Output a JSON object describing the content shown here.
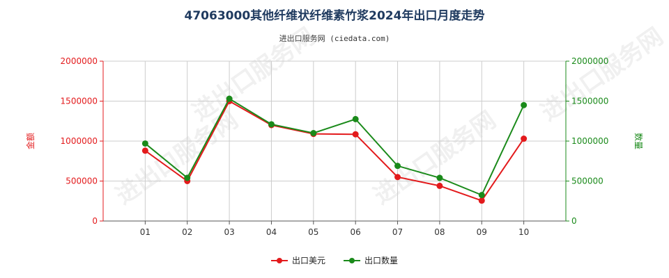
{
  "title": "47063000其他纤维状纤维素竹浆2024年出口月度走势",
  "subtitle": "进出口服务网 (ciedata.com)",
  "watermark": "进出口服务网",
  "colors": {
    "left_axis": "#e31a1c",
    "right_axis": "#1a8a1a",
    "series_usd": "#e31a1c",
    "series_qty": "#1a8a1a",
    "grid": "#cccccc"
  },
  "chart_data": {
    "type": "line",
    "categories": [
      "01",
      "02",
      "03",
      "04",
      "05",
      "06",
      "07",
      "08",
      "09",
      "10"
    ],
    "series": [
      {
        "name": "出口美元",
        "axis": "left",
        "values": [
          880000,
          500000,
          1500000,
          1200000,
          1090000,
          1085000,
          550000,
          440000,
          255000,
          1030000
        ]
      },
      {
        "name": "出口数量",
        "axis": "right",
        "values": [
          970000,
          540000,
          1530000,
          1210000,
          1100000,
          1275000,
          690000,
          540000,
          325000,
          1450000
        ]
      }
    ],
    "ylabel_left": "金额",
    "ylabel_right": "数量",
    "ylim_left": [
      0,
      2000000
    ],
    "ylim_right": [
      0,
      2000000
    ],
    "yticks_left": [
      "0",
      "500000",
      "1000000",
      "1500000",
      "2000000"
    ],
    "yticks_right": [
      "0",
      "500000",
      "1000000",
      "1500000",
      "2000000"
    ],
    "grid": true,
    "legend_position": "bottom-center"
  }
}
